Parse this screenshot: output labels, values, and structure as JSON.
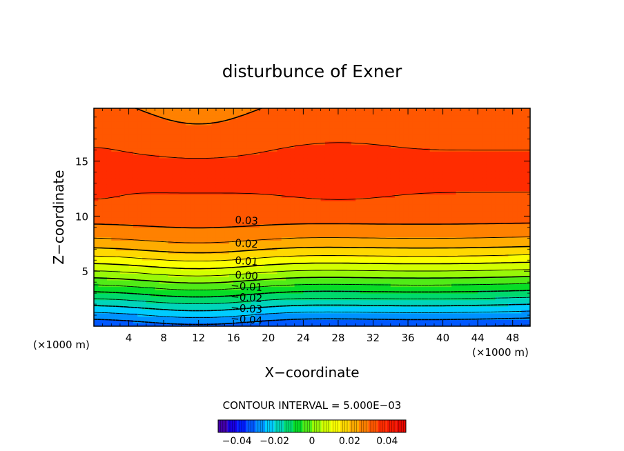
{
  "chart_data": {
    "type": "contour",
    "title": "disturbunce of Exner",
    "xlabel": "X−coordinate",
    "ylabel": "Z−coordinate",
    "x_unit_left": "(×1000 m)",
    "x_unit_right": "(×1000 m)",
    "xlim": [
      0,
      50
    ],
    "ylim": [
      0,
      19.8
    ],
    "x_ticks": [
      4,
      8,
      12,
      16,
      20,
      24,
      28,
      32,
      36,
      40,
      44,
      48
    ],
    "x_tick_labels": [
      "4",
      "8",
      "12",
      "16",
      "20",
      "24",
      "28",
      "32",
      "36",
      "40",
      "44",
      "48"
    ],
    "y_ticks": [
      5,
      10,
      15
    ],
    "y_tick_labels": [
      "5",
      "10",
      "15"
    ],
    "contour_interval_label": "CONTOUR INTERVAL = 5.000E−03",
    "contour_interval": 0.005,
    "value_range": [
      -0.05,
      0.05
    ],
    "contour_labels": [
      {
        "text": "0.03",
        "value": 0.03,
        "x": 17.5,
        "z": 9.6
      },
      {
        "text": "0.02",
        "value": 0.02,
        "x": 17.5,
        "z": 7.5
      },
      {
        "text": "0.01",
        "value": 0.01,
        "x": 17.5,
        "z": 5.9
      },
      {
        "text": "0.00",
        "value": 0.0,
        "x": 17.5,
        "z": 4.6
      },
      {
        "text": "−0.01",
        "value": -0.01,
        "x": 17.5,
        "z": 3.6
      },
      {
        "text": "−0.02",
        "value": -0.02,
        "x": 17.5,
        "z": 2.6
      },
      {
        "text": "−0.03",
        "value": -0.03,
        "x": 17.5,
        "z": 1.6
      },
      {
        "text": "−0.04",
        "value": -0.04,
        "x": 17.5,
        "z": 0.6
      }
    ],
    "colorbar": {
      "min": -0.05,
      "max": 0.05,
      "ticks": [
        -0.04,
        -0.02,
        0,
        0.02,
        0.04
      ],
      "tick_labels": [
        "−0.04",
        "−0.02",
        "0",
        "0.02",
        "0.04"
      ]
    }
  }
}
